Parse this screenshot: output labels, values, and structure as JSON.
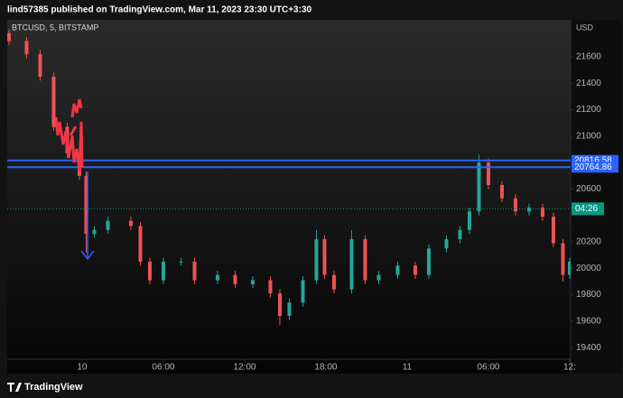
{
  "chart_data": {
    "type": "candlestick",
    "header": "lind57385 published on TradingView.com, Mar 11, 2023 23:30 UTC+3:30",
    "title": "BTCUSD, 5, BITSTAMP",
    "currency": "USD",
    "brand": "TradingView",
    "up_color": "#26a69a",
    "down_color": "#ef5350",
    "x": [
      -5.4,
      -4.1,
      -3.1,
      -2.1,
      -1.1,
      -0.2,
      0.3,
      0.9,
      1.9,
      3.6,
      4.3,
      5,
      6,
      7.3,
      8.3,
      10,
      11.3,
      12.6,
      13.9,
      14.6,
      15.3,
      16.3,
      17.3,
      17.9,
      18.6,
      19.9,
      20.9,
      21.9,
      23.3,
      24.6,
      25.6,
      26.9,
      27.9,
      28.6,
      29.3,
      30,
      31,
      32,
      33,
      34,
      34.8,
      35.5,
      36
    ],
    "open": [
      21780,
      21720,
      21620,
      21450,
      21070,
      20870,
      20700,
      20260,
      20290,
      20360,
      20320,
      20050,
      19910,
      20050,
      20050,
      19910,
      19950,
      19880,
      19910,
      19810,
      19640,
      19740,
      19910,
      20220,
      19950,
      19840,
      20220,
      19910,
      19950,
      20020,
      19950,
      20150,
      20220,
      20290,
      20430,
      20800,
      20630,
      20530,
      20430,
      20460,
      20390,
      20190,
      19950
    ],
    "high": [
      21810,
      21750,
      21650,
      21480,
      21100,
      20900,
      20730,
      20320,
      20390,
      20390,
      20350,
      20080,
      20080,
      20080,
      20080,
      19980,
      19980,
      19940,
      19940,
      19840,
      19770,
      19940,
      20290,
      20250,
      19980,
      20290,
      20250,
      19980,
      20050,
      20050,
      20180,
      20250,
      20320,
      20460,
      20860,
      20830,
      20660,
      20560,
      20490,
      20490,
      20420,
      20220,
      20080
    ],
    "low": [
      21690,
      21590,
      21420,
      21040,
      20840,
      20670,
      20120,
      20230,
      20260,
      20290,
      20020,
      19880,
      19880,
      20020,
      19880,
      19880,
      19850,
      19850,
      19780,
      19570,
      19610,
      19710,
      19880,
      19920,
      19810,
      19810,
      19880,
      19880,
      19920,
      19920,
      19920,
      20120,
      20190,
      20260,
      20400,
      20600,
      20500,
      20400,
      20400,
      20360,
      20160,
      19900,
      19920
    ],
    "close": [
      21720,
      21620,
      21450,
      21070,
      20870,
      20700,
      20260,
      20290,
      20360,
      20320,
      20050,
      19910,
      20050,
      20050,
      19910,
      19950,
      19880,
      19910,
      19810,
      19640,
      19740,
      19910,
      20220,
      19950,
      19840,
      20220,
      19910,
      19950,
      20020,
      19950,
      20150,
      20220,
      20290,
      20430,
      20800,
      20630,
      20530,
      20430,
      20460,
      20390,
      20190,
      19950,
      20050
    ],
    "xlim": [
      -5.53,
      36.07
    ],
    "xticks": [
      {
        "value": 0,
        "label": "10"
      },
      {
        "value": 6,
        "label": "06:00"
      },
      {
        "value": 12,
        "label": "12:00"
      },
      {
        "value": 18,
        "label": "18:00"
      },
      {
        "value": 24,
        "label": "11"
      },
      {
        "value": 30,
        "label": "06:00"
      },
      {
        "value": 36,
        "label": "12:"
      }
    ],
    "ylim": [
      19312,
      21880
    ],
    "yticks": [
      19400,
      19600,
      19800,
      20000,
      20200,
      20600,
      21000,
      21200,
      21400,
      21600
    ],
    "hlines": [
      20816.58,
      20764.86
    ],
    "hline_color": "#2962ff",
    "last_price": 20450,
    "countdown": "04:26",
    "countdown_color": "#089981"
  }
}
